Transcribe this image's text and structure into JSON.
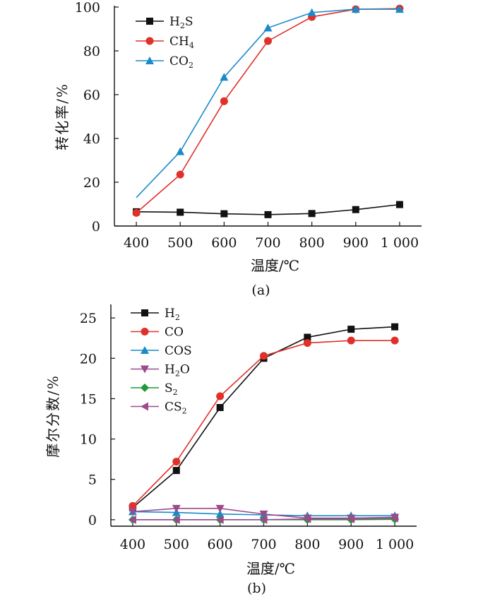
{
  "chart_data": [
    {
      "type": "line",
      "panel_label": "(a)",
      "xlabel": "温度/℃",
      "ylabel": "转化率/%",
      "x": [
        400,
        500,
        600,
        700,
        800,
        900,
        1000
      ],
      "x_tick_labels": [
        "400",
        "500",
        "600",
        "700",
        "800",
        "900",
        "1 000"
      ],
      "xlim": [
        350,
        1050
      ],
      "ylim": [
        0,
        100
      ],
      "y_ticks": [
        0,
        20,
        40,
        60,
        80,
        100
      ],
      "legend_position": "top-left",
      "grid": false,
      "series": [
        {
          "name": "H2S",
          "name_base": "H",
          "name_sub": "2",
          "name_tail": "S",
          "color": "#111111",
          "marker": "square",
          "values": [
            6.5,
            6.3,
            5.6,
            5.2,
            5.7,
            7.5,
            9.8
          ]
        },
        {
          "name": "CH4",
          "name_base": "CH",
          "name_sub": "4",
          "name_tail": "",
          "color": "#e0302a",
          "marker": "circle",
          "values": [
            6.0,
            23.5,
            57.0,
            84.5,
            95.5,
            99.0,
            99.3
          ]
        },
        {
          "name": "CO2",
          "name_base": "CO",
          "name_sub": "2",
          "name_tail": "",
          "color": "#1a8ac9",
          "marker": "triangle-up",
          "values": [
            13.0,
            34.0,
            68.0,
            90.5,
            97.5,
            99.0,
            99.0
          ]
        }
      ]
    },
    {
      "type": "line",
      "panel_label": "(b)",
      "xlabel": "温度/℃",
      "ylabel": "摩尔分数/%",
      "x": [
        400,
        500,
        600,
        700,
        800,
        900,
        1000
      ],
      "x_tick_labels": [
        "400",
        "500",
        "600",
        "700",
        "800",
        "900",
        "1 000"
      ],
      "xlim": [
        350,
        1050
      ],
      "ylim": [
        -0.8,
        26.5
      ],
      "y_ticks": [
        0,
        5,
        10,
        15,
        20,
        25
      ],
      "legend_position": "top-left",
      "grid": false,
      "series": [
        {
          "name": "H2",
          "name_base": "H",
          "name_sub": "2",
          "name_tail": "",
          "color": "#111111",
          "marker": "square",
          "values": [
            1.5,
            6.1,
            13.9,
            20.0,
            22.6,
            23.6,
            23.9
          ]
        },
        {
          "name": "CO",
          "name_base": "CO",
          "name_sub": "",
          "name_tail": "",
          "color": "#e0302a",
          "marker": "circle",
          "values": [
            1.7,
            7.2,
            15.3,
            20.3,
            21.9,
            22.2,
            22.2
          ]
        },
        {
          "name": "COS",
          "name_base": "COS",
          "name_sub": "",
          "name_tail": "",
          "color": "#1a8ac9",
          "marker": "triangle-up",
          "values": [
            1.0,
            0.9,
            0.7,
            0.6,
            0.5,
            0.5,
            0.5
          ]
        },
        {
          "name": "H2O",
          "name_base": "H",
          "name_sub": "2",
          "name_tail": "O",
          "color": "#9b4a8c",
          "marker": "triangle-down",
          "values": [
            1.0,
            1.4,
            1.4,
            0.7,
            0.2,
            0.2,
            0.3
          ]
        },
        {
          "name": "S2",
          "name_base": "S",
          "name_sub": "2",
          "name_tail": "",
          "color": "#1f9a3a",
          "marker": "diamond",
          "values": [
            0.0,
            0.0,
            0.0,
            0.0,
            0.0,
            0.0,
            0.05
          ]
        },
        {
          "name": "CS2",
          "name_base": "CS",
          "name_sub": "2",
          "name_tail": "",
          "color": "#9b4a8c",
          "marker": "triangle-left",
          "values": [
            0.0,
            0.0,
            0.0,
            0.0,
            0.1,
            0.1,
            0.2
          ]
        }
      ]
    }
  ]
}
